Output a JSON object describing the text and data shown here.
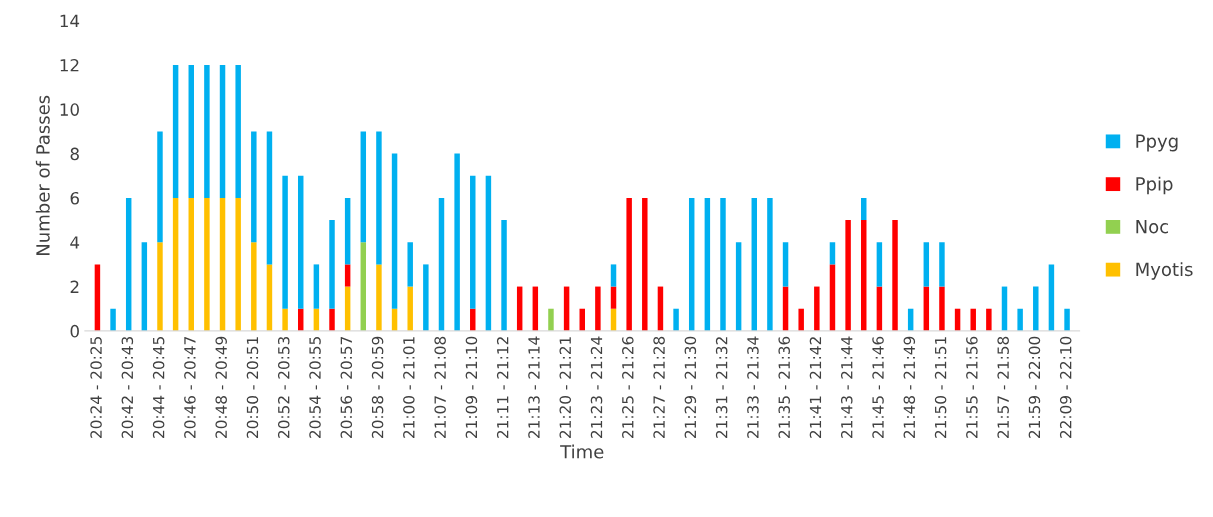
{
  "chart_data": {
    "type": "bar",
    "stacked": true,
    "xlabel": "Time",
    "ylabel": "Number of Passes",
    "ylim": [
      0,
      14
    ],
    "yticks": [
      0,
      2,
      4,
      6,
      8,
      10,
      12,
      14
    ],
    "grid": false,
    "legend": "right",
    "categories": [
      "20:24 - 20:25",
      null,
      "20:42 - 20:43",
      null,
      "20:44 - 20:45",
      null,
      "20:46 - 20:47",
      null,
      "20:48 - 20:49",
      null,
      "20:50 - 20:51",
      null,
      "20:52 - 20:53",
      null,
      "20:54 - 20:55",
      null,
      "20:56 - 20:57",
      null,
      "20:58 - 20:59",
      null,
      "21:00 - 21:01",
      null,
      "21:07 - 21:08",
      null,
      "21:09 - 21:10",
      null,
      "21:11 - 21:12",
      null,
      "21:13 - 21:14",
      null,
      "21:20 - 21:21",
      null,
      "21:23 - 21:24",
      null,
      "21:25 - 21:26",
      null,
      "21:27 - 21:28",
      null,
      "21:29 - 21:30",
      null,
      "21:31 - 21:32",
      null,
      "21:33 - 21:34",
      null,
      "21:35 - 21:36",
      null,
      "21:41 - 21:42",
      null,
      "21:43 - 21:44",
      null,
      "21:45 - 21:46",
      null,
      "21:48 - 21:49",
      null,
      "21:50 - 21:51",
      null,
      "21:55 - 21:56",
      null,
      "21:57 - 21:58",
      null,
      "21:59 - 22:00",
      null,
      "22:09 - 22:10"
    ],
    "series": [
      {
        "name": "Myotis",
        "color": "#ffc000",
        "values": [
          0,
          0,
          0,
          0,
          4,
          6,
          6,
          6,
          6,
          6,
          4,
          3,
          1,
          0,
          1,
          0,
          2,
          0,
          3,
          1,
          2,
          0,
          0,
          0,
          0,
          0,
          0,
          0,
          0,
          0,
          0,
          0,
          0,
          1,
          0,
          0,
          0,
          0,
          0,
          0,
          0,
          0,
          0,
          0,
          0,
          0,
          0,
          0,
          0,
          0,
          0,
          0,
          0,
          0,
          0,
          0,
          0,
          0,
          0,
          0,
          0,
          0,
          0
        ]
      },
      {
        "name": "Noc",
        "color": "#92d050",
        "values": [
          0,
          0,
          0,
          0,
          0,
          0,
          0,
          0,
          0,
          0,
          0,
          0,
          0,
          0,
          0,
          0,
          0,
          4,
          0,
          0,
          0,
          0,
          0,
          0,
          0,
          0,
          0,
          0,
          0,
          1,
          0,
          0,
          0,
          0,
          0,
          0,
          0,
          0,
          0,
          0,
          0,
          0,
          0,
          0,
          0,
          0,
          0,
          0,
          0,
          0,
          0,
          0,
          0,
          0,
          0,
          0,
          0,
          0,
          0,
          0,
          0,
          0,
          0
        ]
      },
      {
        "name": "Ppip",
        "color": "#ff0000",
        "values": [
          3,
          0,
          0,
          0,
          0,
          0,
          0,
          0,
          0,
          0,
          0,
          0,
          0,
          1,
          0,
          1,
          1,
          0,
          0,
          0,
          0,
          0,
          0,
          0,
          1,
          0,
          0,
          2,
          2,
          0,
          2,
          1,
          2,
          1,
          6,
          6,
          2,
          0,
          0,
          0,
          0,
          0,
          0,
          0,
          2,
          1,
          2,
          3,
          5,
          5,
          2,
          5,
          0,
          2,
          2,
          1,
          1,
          1,
          0,
          0,
          0,
          0,
          0
        ]
      },
      {
        "name": "Ppyg",
        "color": "#00b0f0",
        "values": [
          0,
          1,
          6,
          4,
          5,
          6,
          6,
          6,
          6,
          6,
          5,
          6,
          6,
          6,
          2,
          4,
          3,
          5,
          6,
          7,
          2,
          3,
          6,
          8,
          6,
          7,
          5,
          0,
          0,
          0,
          0,
          0,
          0,
          1,
          0,
          0,
          0,
          1,
          6,
          6,
          6,
          4,
          6,
          6,
          2,
          0,
          0,
          1,
          0,
          1,
          2,
          0,
          1,
          2,
          2,
          0,
          0,
          0,
          2,
          1,
          2,
          3,
          1
        ]
      }
    ]
  }
}
